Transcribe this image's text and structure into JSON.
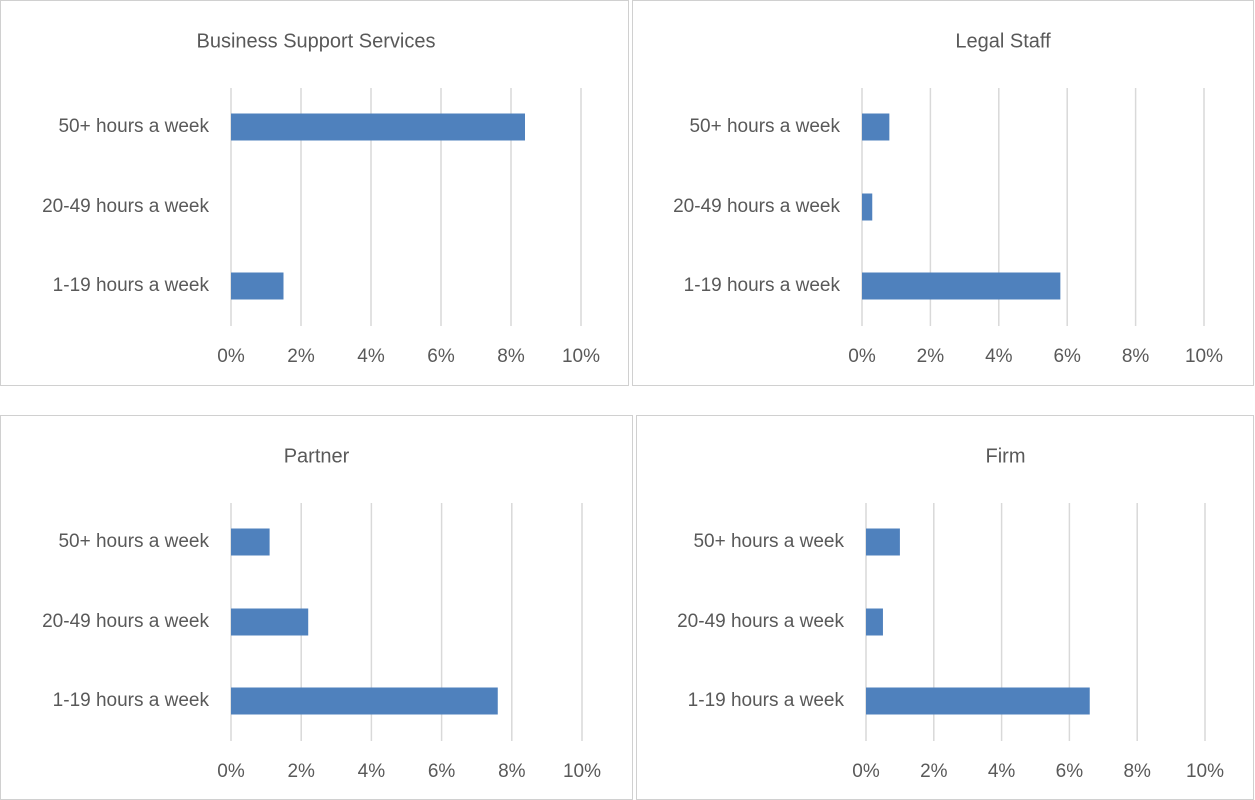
{
  "chart_data": [
    {
      "type": "bar",
      "orientation": "horizontal",
      "title": "Business Support Services",
      "categories": [
        "50+ hours a week",
        "20-49 hours a week",
        "1-19 hours a week"
      ],
      "values": [
        8.4,
        0,
        1.5
      ],
      "color": "#4f81bd",
      "xlim": [
        0,
        10
      ],
      "xticks": [
        {
          "value": 0,
          "label": "0%"
        },
        {
          "value": 2,
          "label": "2%"
        },
        {
          "value": 4,
          "label": "4%"
        },
        {
          "value": 6,
          "label": "6%"
        },
        {
          "value": 8,
          "label": "8%"
        },
        {
          "value": 10,
          "label": "10%"
        }
      ],
      "grid": true
    },
    {
      "type": "bar",
      "orientation": "horizontal",
      "title": "Legal Staff",
      "categories": [
        "50+ hours a week",
        "20-49 hours a week",
        "1-19 hours a week"
      ],
      "values": [
        0.8,
        0.3,
        5.8
      ],
      "color": "#4f81bd",
      "xlim": [
        0,
        10
      ],
      "xticks": [
        {
          "value": 0,
          "label": "0%"
        },
        {
          "value": 2,
          "label": "2%"
        },
        {
          "value": 4,
          "label": "4%"
        },
        {
          "value": 6,
          "label": "6%"
        },
        {
          "value": 8,
          "label": "8%"
        },
        {
          "value": 10,
          "label": "10%"
        }
      ],
      "grid": true
    },
    {
      "type": "bar",
      "orientation": "horizontal",
      "title": "Partner",
      "categories": [
        "50+ hours a week",
        "20-49 hours a week",
        "1-19 hours a week"
      ],
      "values": [
        1.1,
        2.2,
        7.6
      ],
      "color": "#4f81bd",
      "xlim": [
        0,
        10
      ],
      "xticks": [
        {
          "value": 0,
          "label": "0%"
        },
        {
          "value": 2,
          "label": "2%"
        },
        {
          "value": 4,
          "label": "4%"
        },
        {
          "value": 6,
          "label": "6%"
        },
        {
          "value": 8,
          "label": "8%"
        },
        {
          "value": 10,
          "label": "10%"
        }
      ],
      "grid": true
    },
    {
      "type": "bar",
      "orientation": "horizontal",
      "title": "Firm",
      "categories": [
        "50+ hours a week",
        "20-49 hours a week",
        "1-19 hours a week"
      ],
      "values": [
        1.0,
        0.5,
        6.6
      ],
      "color": "#4f81bd",
      "xlim": [
        0,
        10
      ],
      "xticks": [
        {
          "value": 0,
          "label": "0%"
        },
        {
          "value": 2,
          "label": "2%"
        },
        {
          "value": 4,
          "label": "4%"
        },
        {
          "value": 6,
          "label": "6%"
        },
        {
          "value": 8,
          "label": "8%"
        },
        {
          "value": 10,
          "label": "10%"
        }
      ],
      "grid": true
    }
  ]
}
